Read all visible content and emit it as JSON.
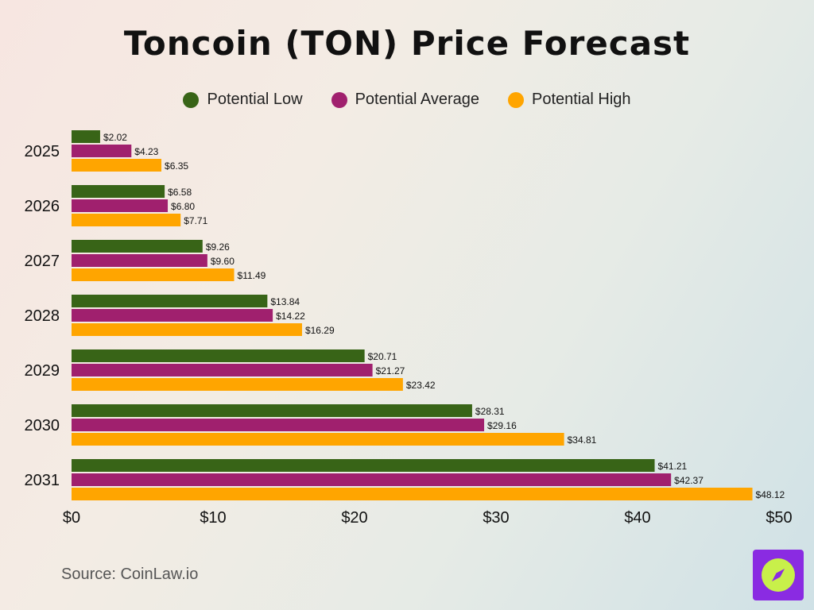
{
  "title": "Toncoin (TON) Price Forecast",
  "source": "Source: CoinLaw.io",
  "logo_icon": "compass-icon",
  "chart_data": {
    "type": "bar",
    "orientation": "horizontal",
    "categories": [
      "2025",
      "2026",
      "2027",
      "2028",
      "2029",
      "2030",
      "2031"
    ],
    "series": [
      {
        "name": "Potential Low",
        "color": "#386417",
        "values": [
          2.02,
          6.58,
          9.26,
          13.84,
          20.71,
          28.31,
          41.21
        ],
        "labels": [
          "$2.02",
          "$6.58",
          "$9.26",
          "$13.84",
          "$20.71",
          "$28.31",
          "$41.21"
        ]
      },
      {
        "name": "Potential Average",
        "color": "#a0206e",
        "values": [
          4.23,
          6.8,
          9.6,
          14.22,
          21.27,
          29.16,
          42.37
        ],
        "labels": [
          "$4.23",
          "$6.80",
          "$9.60",
          "$14.22",
          "$21.27",
          "$29.16",
          "$42.37"
        ]
      },
      {
        "name": "Potential High",
        "color": "#ffa500",
        "values": [
          6.35,
          7.71,
          11.49,
          16.29,
          23.42,
          34.81,
          48.12
        ],
        "labels": [
          "$6.35",
          "$7.71",
          "$11.49",
          "$16.29",
          "$23.42",
          "$34.81",
          "$48.12"
        ]
      }
    ],
    "xlim": [
      0,
      50
    ],
    "x_ticks": [
      0,
      10,
      20,
      30,
      40,
      50
    ],
    "x_tick_labels": [
      "$0",
      "$10",
      "$20",
      "$30",
      "$40",
      "$50"
    ],
    "xlabel": "",
    "ylabel": "",
    "grid": false,
    "legend_position": "top-center"
  }
}
